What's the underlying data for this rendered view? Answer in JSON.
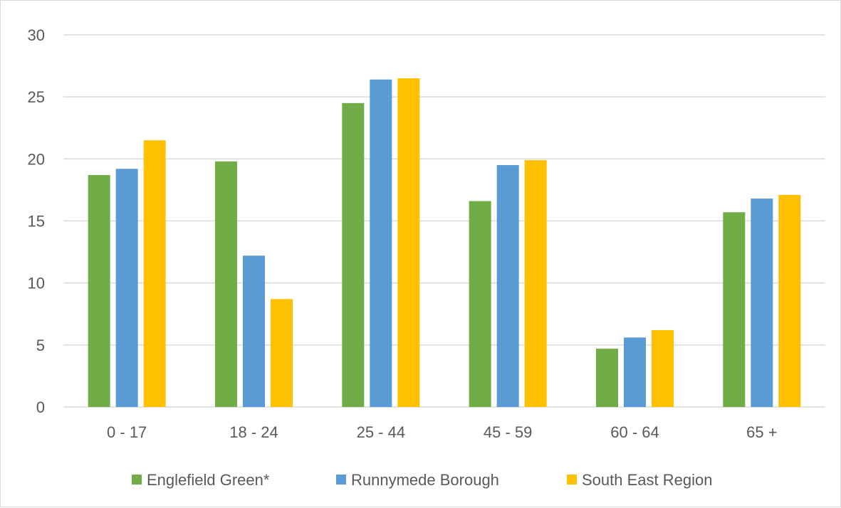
{
  "chart_data": {
    "type": "bar",
    "title": "",
    "xlabel": "",
    "ylabel": "",
    "categories": [
      "0 - 17",
      "18 - 24",
      "25 - 44",
      "45 - 59",
      "60 - 64",
      "65 +"
    ],
    "series": [
      {
        "name": "Englefield Green*",
        "color": "#70ad47",
        "values": [
          18.7,
          19.8,
          24.5,
          16.6,
          4.7,
          15.7
        ]
      },
      {
        "name": "Runnymede Borough",
        "color": "#5b9bd5",
        "values": [
          19.2,
          12.2,
          26.4,
          19.5,
          5.6,
          16.8
        ]
      },
      {
        "name": "South East Region",
        "color": "#ffc000",
        "values": [
          21.5,
          8.7,
          26.5,
          19.9,
          6.2,
          17.1
        ]
      }
    ],
    "ylim": [
      0,
      30
    ],
    "yticks": [
      0,
      5,
      10,
      15,
      20,
      25,
      30
    ],
    "grid": true,
    "legend_position": "bottom"
  }
}
